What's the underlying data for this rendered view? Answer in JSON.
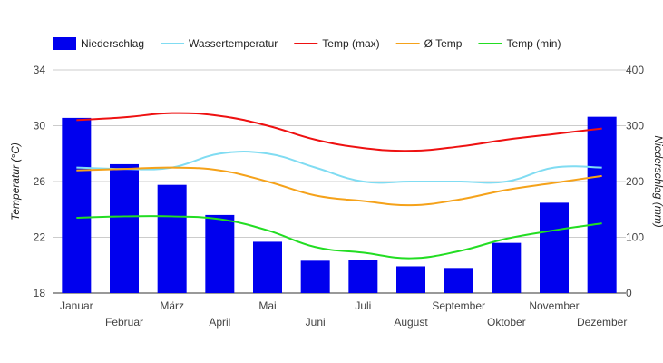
{
  "chart_data": {
    "type": "bar",
    "categories": [
      "Januar",
      "Februar",
      "März",
      "April",
      "Mai",
      "Juni",
      "Juli",
      "August",
      "September",
      "Oktober",
      "November",
      "Dezember"
    ],
    "y_left": {
      "label": "Temperatur (°C)",
      "ticks": [
        "18",
        "22",
        "26",
        "30",
        "34"
      ],
      "range": [
        18,
        34
      ]
    },
    "y_right": {
      "label": "Niederschlag (mm)",
      "ticks": [
        "0",
        "100",
        "200",
        "300",
        "400"
      ],
      "range": [
        0,
        400
      ]
    },
    "grid": true,
    "legend_position": "top-left",
    "bars": {
      "name": "Niederschlag",
      "color": "#0000ee",
      "axis": "right",
      "values": [
        314,
        231,
        194,
        140,
        92,
        58,
        60,
        48,
        45,
        90,
        162,
        316
      ]
    },
    "series": [
      {
        "name": "Wassertemperatur",
        "color": "#80dcf2",
        "axis": "left",
        "values": [
          27.0,
          26.9,
          27.0,
          28.0,
          28.0,
          27.0,
          26.0,
          26.0,
          26.0,
          26.0,
          27.0,
          27.0
        ]
      },
      {
        "name": "Temp (max)",
        "color": "#ee1111",
        "axis": "left",
        "values": [
          30.4,
          30.6,
          30.9,
          30.7,
          30.0,
          29.0,
          28.4,
          28.2,
          28.5,
          29.0,
          29.4,
          29.8
        ]
      },
      {
        "name": "Ø Temp",
        "color": "#f5a21a",
        "axis": "left",
        "values": [
          26.8,
          26.9,
          27.0,
          26.8,
          26.0,
          25.0,
          24.6,
          24.3,
          24.7,
          25.4,
          25.9,
          26.4
        ]
      },
      {
        "name": "Temp (min)",
        "color": "#22dd22",
        "axis": "left",
        "values": [
          23.4,
          23.5,
          23.5,
          23.3,
          22.5,
          21.3,
          20.9,
          20.5,
          21.0,
          21.9,
          22.5,
          23.0
        ]
      }
    ]
  }
}
